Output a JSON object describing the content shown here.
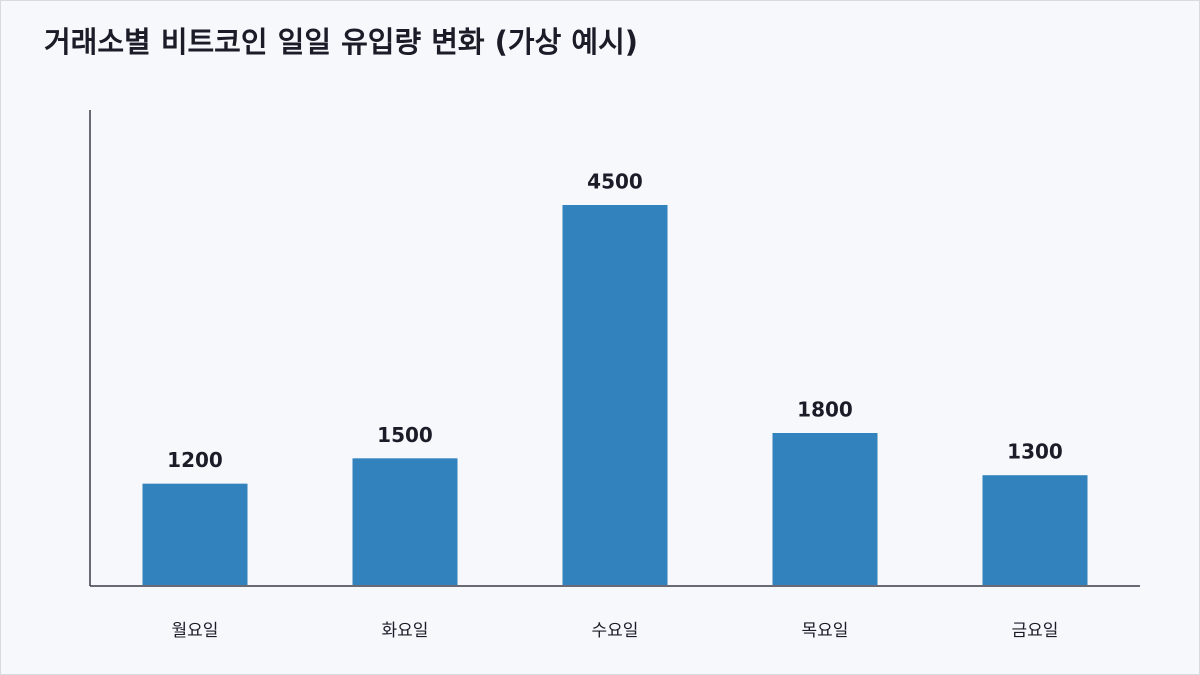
{
  "chart_data": {
    "type": "bar",
    "title": "거래소별 비트코인 일일 유입량 변화 (가상 예시)",
    "categories": [
      "월요일",
      "화요일",
      "수요일",
      "목요일",
      "금요일"
    ],
    "values": [
      1200,
      1500,
      4500,
      1800,
      1300
    ],
    "color": "#3182bd"
  }
}
